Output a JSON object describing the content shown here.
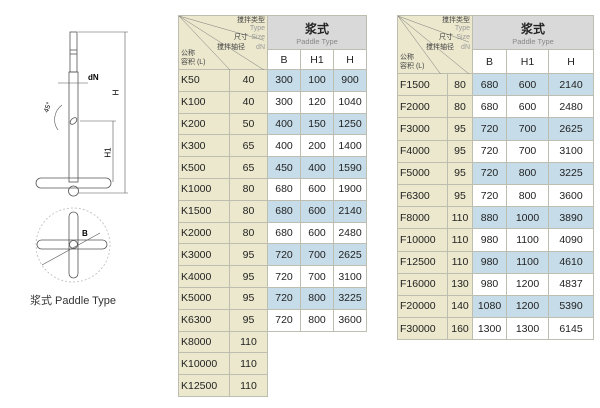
{
  "diagram": {
    "labels": {
      "dN": "dN",
      "H": "H",
      "H1": "H1",
      "angle": "45°",
      "B": "B"
    },
    "caption": "浆式  Paddle Type"
  },
  "header": {
    "type_cn": "搅拌类型",
    "type_en": "Type",
    "size_cn": "尺寸",
    "size_en": "Size",
    "shaft_cn": "搅拌轴径",
    "shaft_en": "dN",
    "volume_cn": "公称",
    "volume_cn2": "容积 (L)",
    "paddle_cn": "浆式",
    "paddle_en": "Paddle Type",
    "cols": [
      "B",
      "H1",
      "H"
    ]
  },
  "colors": {
    "beige": "#ece8cd",
    "highlight": "#c6dce9",
    "header": "#d9d9d9"
  },
  "left_table": [
    [
      "K50",
      "40",
      "300",
      "100",
      "900"
    ],
    [
      "K100",
      "40",
      "300",
      "120",
      "1040"
    ],
    [
      "K200",
      "50",
      "400",
      "150",
      "1250"
    ],
    [
      "K300",
      "65",
      "400",
      "200",
      "1400"
    ],
    [
      "K500",
      "65",
      "450",
      "400",
      "1590"
    ],
    [
      "K1000",
      "80",
      "680",
      "600",
      "1900"
    ],
    [
      "K1500",
      "80",
      "680",
      "600",
      "2140"
    ],
    [
      "K2000",
      "80",
      "680",
      "600",
      "2480"
    ],
    [
      "K3000",
      "95",
      "720",
      "700",
      "2625"
    ],
    [
      "K4000",
      "95",
      "720",
      "700",
      "3100"
    ],
    [
      "K5000",
      "95",
      "720",
      "800",
      "3225"
    ],
    [
      "K6300",
      "95",
      "720",
      "800",
      "3600"
    ],
    [
      "K8000",
      "110"
    ],
    [
      "K10000",
      "110"
    ],
    [
      "K12500",
      "110"
    ]
  ],
  "right_table": [
    [
      "F1500",
      "80",
      "680",
      "600",
      "2140"
    ],
    [
      "F2000",
      "80",
      "680",
      "600",
      "2480"
    ],
    [
      "F3000",
      "95",
      "720",
      "700",
      "2625"
    ],
    [
      "F4000",
      "95",
      "720",
      "700",
      "3100"
    ],
    [
      "F5000",
      "95",
      "720",
      "800",
      "3225"
    ],
    [
      "F6300",
      "95",
      "720",
      "800",
      "3600"
    ],
    [
      "F8000",
      "110",
      "880",
      "1000",
      "3890"
    ],
    [
      "F10000",
      "110",
      "980",
      "1100",
      "4090"
    ],
    [
      "F12500",
      "110",
      "980",
      "1100",
      "4610"
    ],
    [
      "F16000",
      "130",
      "980",
      "1200",
      "4837"
    ],
    [
      "F20000",
      "140",
      "1080",
      "1200",
      "5390"
    ],
    [
      "F30000",
      "160",
      "1300",
      "1300",
      "6145"
    ]
  ]
}
